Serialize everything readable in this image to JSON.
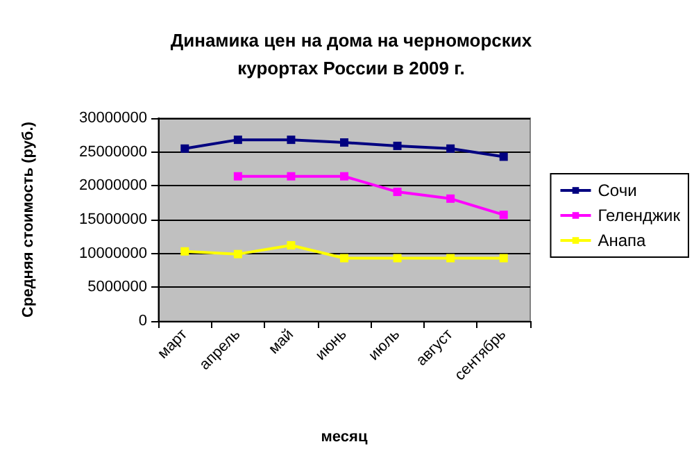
{
  "chart_data": {
    "type": "line",
    "title": "Динамика цен на дома на черноморских\nкурортах России в 2009 г.",
    "xlabel": "месяц",
    "ylabel": "Средняя стоимость (руб.)",
    "categories": [
      "март",
      "апрель",
      "май",
      "июнь",
      "июль",
      "август",
      "сентябрь"
    ],
    "series": [
      {
        "name": "Сочи",
        "color": "#000080",
        "values": [
          25500000,
          26800000,
          26800000,
          26400000,
          25900000,
          25500000,
          24300000
        ]
      },
      {
        "name": "Геленджик",
        "color": "#ff00ff",
        "values": [
          null,
          21400000,
          21400000,
          21400000,
          19100000,
          18100000,
          15700000
        ]
      },
      {
        "name": "Анапа",
        "color": "#ffff00",
        "values": [
          10300000,
          9900000,
          11200000,
          9300000,
          9300000,
          9300000,
          9300000
        ]
      }
    ],
    "ylim": [
      0,
      30000000
    ],
    "yticks": [
      0,
      5000000,
      10000000,
      15000000,
      20000000,
      25000000,
      30000000
    ],
    "grid": "y",
    "legend": "right",
    "marker": "square",
    "line_style": "solid"
  }
}
